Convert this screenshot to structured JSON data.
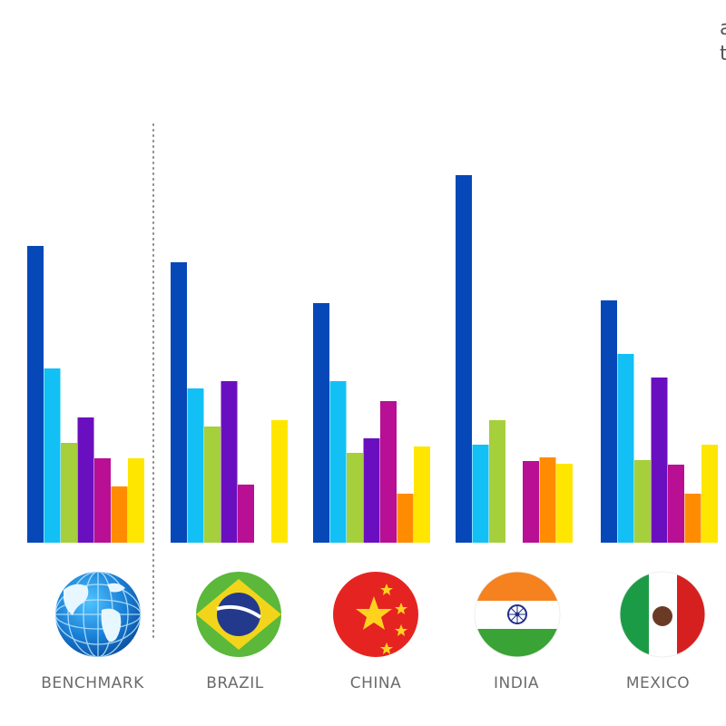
{
  "chart_data": {
    "type": "bar",
    "categories": [
      "BENCHMARK",
      "BRAZIL",
      "CHINA",
      "INDIA",
      "MEXICO"
    ],
    "ylim": [
      0,
      410
    ],
    "series": [
      {
        "color": "#0748b8",
        "values": [
          327,
          309,
          264,
          405,
          267
        ]
      },
      {
        "color": "#12c0f5",
        "values": [
          192,
          170,
          178,
          108,
          208
        ]
      },
      {
        "color": "#a6cf3c",
        "values": [
          110,
          128,
          99,
          135,
          91
        ]
      },
      {
        "color": "#6a0fbf",
        "values": [
          138,
          178,
          115,
          null,
          182
        ]
      },
      {
        "color": "#b80f94",
        "values": [
          93,
          64,
          156,
          90,
          86
        ]
      },
      {
        "color": "#ff8c00",
        "values": [
          62,
          null,
          54,
          94,
          54
        ]
      },
      {
        "color": "#ffe600",
        "values": [
          93,
          135,
          106,
          87,
          108
        ]
      }
    ]
  },
  "corner_text": {
    "line1": "a",
    "line2": "t"
  },
  "flags": [
    {
      "name": "benchmark",
      "icon": "globe-icon"
    },
    {
      "name": "brazil",
      "icon": "brazil-flag-icon"
    },
    {
      "name": "china",
      "icon": "china-flag-icon"
    },
    {
      "name": "india",
      "icon": "india-flag-icon"
    },
    {
      "name": "mexico",
      "icon": "mexico-flag-icon"
    }
  ]
}
